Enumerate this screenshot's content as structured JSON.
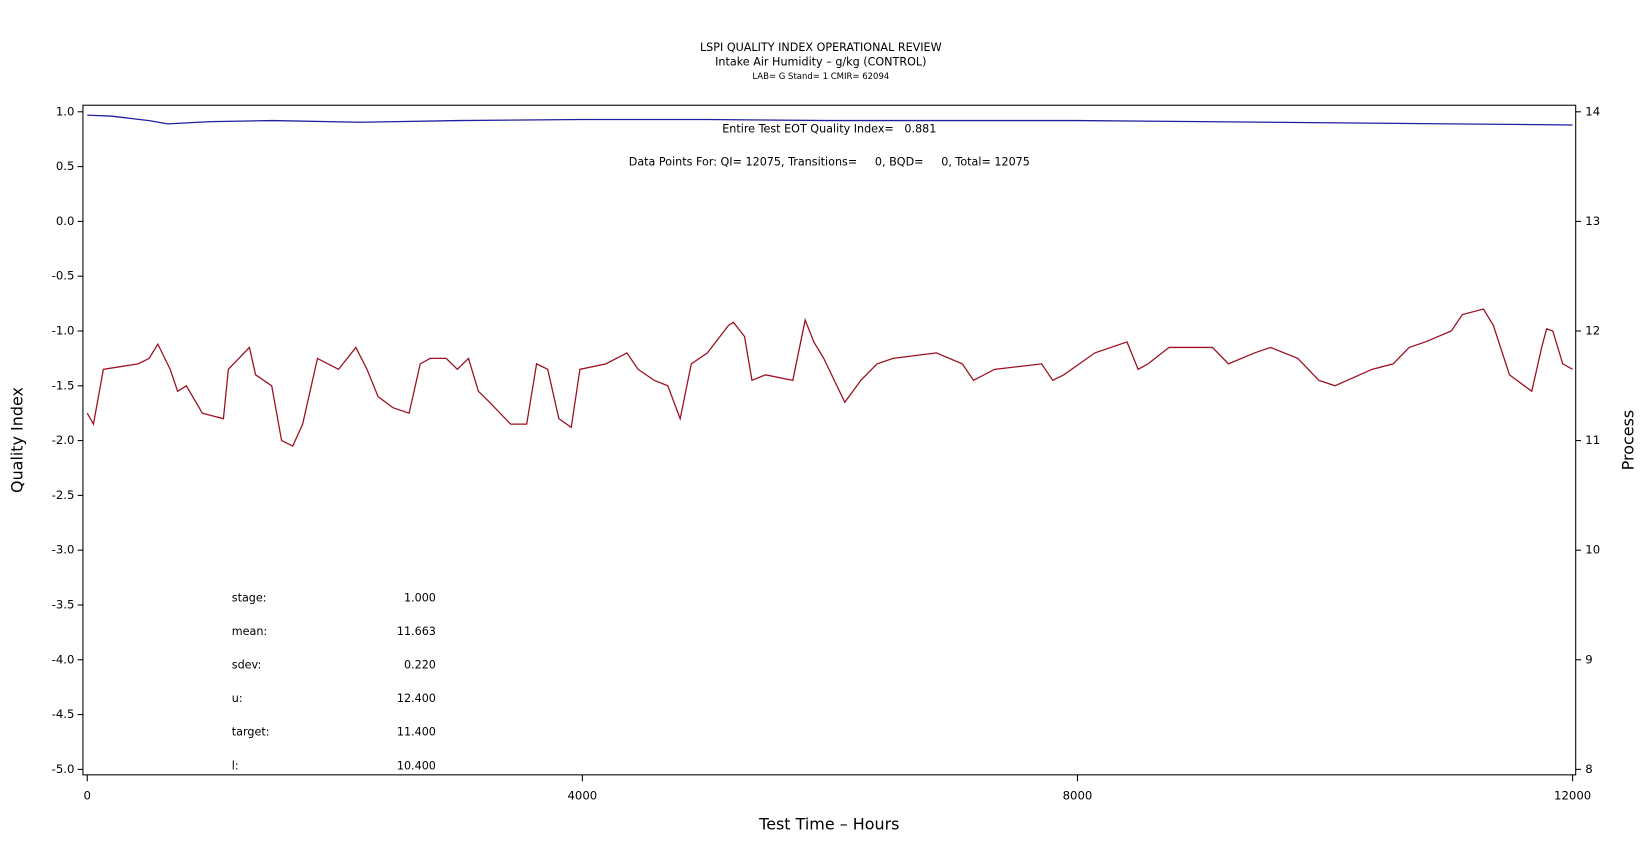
{
  "chart_data": {
    "type": "line",
    "title": "LSPI QUALITY INDEX OPERATIONAL REVIEW",
    "subtitle": "Intake Air Humidity – g/kg (CONTROL)",
    "subsubtitle": "LAB= G Stand= 1 CMIR= 62094",
    "xlabel": "Test Time – Hours",
    "ylabel": "Quality Index",
    "y2label": "Process",
    "annotations": [
      "Entire Test EOT Quality Index=   0.881",
      "Data Points For: QI= 12075, Transitions=     0, BQD=     0, Total= 12075"
    ],
    "stats": [
      {
        "label": "stage:",
        "value": "1.000"
      },
      {
        "label": "mean:",
        "value": "11.663"
      },
      {
        "label": "sdev:",
        "value": "0.220"
      },
      {
        "label": "u:",
        "value": "12.400"
      },
      {
        "label": "target:",
        "value": "11.400"
      },
      {
        "label": "l:",
        "value": "10.400"
      }
    ],
    "xlim": [
      -35,
      12025
    ],
    "xticks": [
      0,
      4000,
      8000,
      12000
    ],
    "ylim": [
      -5.05,
      1.06
    ],
    "yticks": [
      {
        "value": -5,
        "label": "-5.0"
      },
      {
        "value": -4.5,
        "label": "-4.5"
      },
      {
        "value": -4,
        "label": "-4.0"
      },
      {
        "value": -3.5,
        "label": "-3.5"
      },
      {
        "value": -3,
        "label": "-3.0"
      },
      {
        "value": -2.5,
        "label": "-2.5"
      },
      {
        "value": -2,
        "label": "-2.0"
      },
      {
        "value": -1.5,
        "label": "-1.5"
      },
      {
        "value": -1,
        "label": "-1.0"
      },
      {
        "value": -0.5,
        "label": "-0.5"
      },
      {
        "value": 0,
        "label": "0.0"
      },
      0.5,
      {
        "value": 1,
        "label": "1.0"
      }
    ],
    "y2lim": [
      7.95,
      14.06
    ],
    "y2ticks": [
      8,
      9,
      10,
      11,
      12,
      13,
      14
    ],
    "series": [
      {
        "color": "#1f1fa0",
        "axis": "y",
        "x": [
          0,
          200,
          500,
          650,
          1000,
          1500,
          2200,
          2500,
          3000,
          4000,
          5000,
          6000,
          7000,
          8000,
          9000,
          10000,
          11000,
          12000
        ],
        "values": [
          0.97,
          0.96,
          0.92,
          0.89,
          0.91,
          0.92,
          0.905,
          0.91,
          0.92,
          0.93,
          0.93,
          0.92,
          0.92,
          0.92,
          0.91,
          0.9,
          0.89,
          0.88
        ]
      },
      {
        "color": "#9b1020",
        "axis": "y2",
        "x": [
          0,
          50,
          130,
          410,
          500,
          570,
          670,
          730,
          800,
          930,
          1100,
          1140,
          1310,
          1360,
          1490,
          1570,
          1660,
          1740,
          1860,
          2030,
          2170,
          2260,
          2350,
          2470,
          2600,
          2690,
          2770,
          2900,
          2990,
          3080,
          3160,
          3250,
          3420,
          3550,
          3630,
          3720,
          3810,
          3910,
          3980,
          4190,
          4360,
          4450,
          4580,
          4690,
          4790,
          4880,
          5010,
          5180,
          5220,
          5310,
          5370,
          5480,
          5700,
          5800,
          5870,
          5950,
          6120,
          6250,
          6380,
          6510,
          6860,
          7070,
          7160,
          7330,
          7710,
          7800,
          7890,
          8140,
          8400,
          8490,
          8570,
          8740,
          9090,
          9220,
          9430,
          9560,
          9780,
          9950,
          10080,
          10380,
          10550,
          10680,
          10810,
          11020,
          11110,
          11280,
          11360,
          11490,
          11670,
          11750,
          11790,
          11840,
          11920,
          12000
        ],
        "values": [
          11.25,
          11.15,
          11.65,
          11.7,
          11.75,
          11.88,
          11.65,
          11.45,
          11.5,
          11.25,
          11.2,
          11.65,
          11.85,
          11.6,
          11.5,
          11.0,
          10.95,
          11.15,
          11.75,
          11.65,
          11.85,
          11.65,
          11.4,
          11.3,
          11.25,
          11.7,
          11.75,
          11.75,
          11.65,
          11.75,
          11.45,
          11.35,
          11.15,
          11.15,
          11.7,
          11.65,
          11.2,
          11.12,
          11.65,
          11.7,
          11.8,
          11.65,
          11.55,
          11.5,
          11.2,
          11.7,
          11.8,
          12.05,
          12.08,
          11.95,
          11.55,
          11.6,
          11.55,
          12.1,
          11.9,
          11.75,
          11.35,
          11.55,
          11.7,
          11.75,
          11.8,
          11.7,
          11.55,
          11.65,
          11.7,
          11.55,
          11.6,
          11.8,
          11.9,
          11.65,
          11.7,
          11.85,
          11.85,
          11.7,
          11.8,
          11.85,
          11.75,
          11.55,
          11.5,
          11.65,
          11.7,
          11.85,
          11.9,
          12.0,
          12.15,
          12.2,
          12.05,
          11.6,
          11.45,
          11.85,
          12.02,
          12.0,
          11.7,
          11.65
        ]
      }
    ]
  }
}
